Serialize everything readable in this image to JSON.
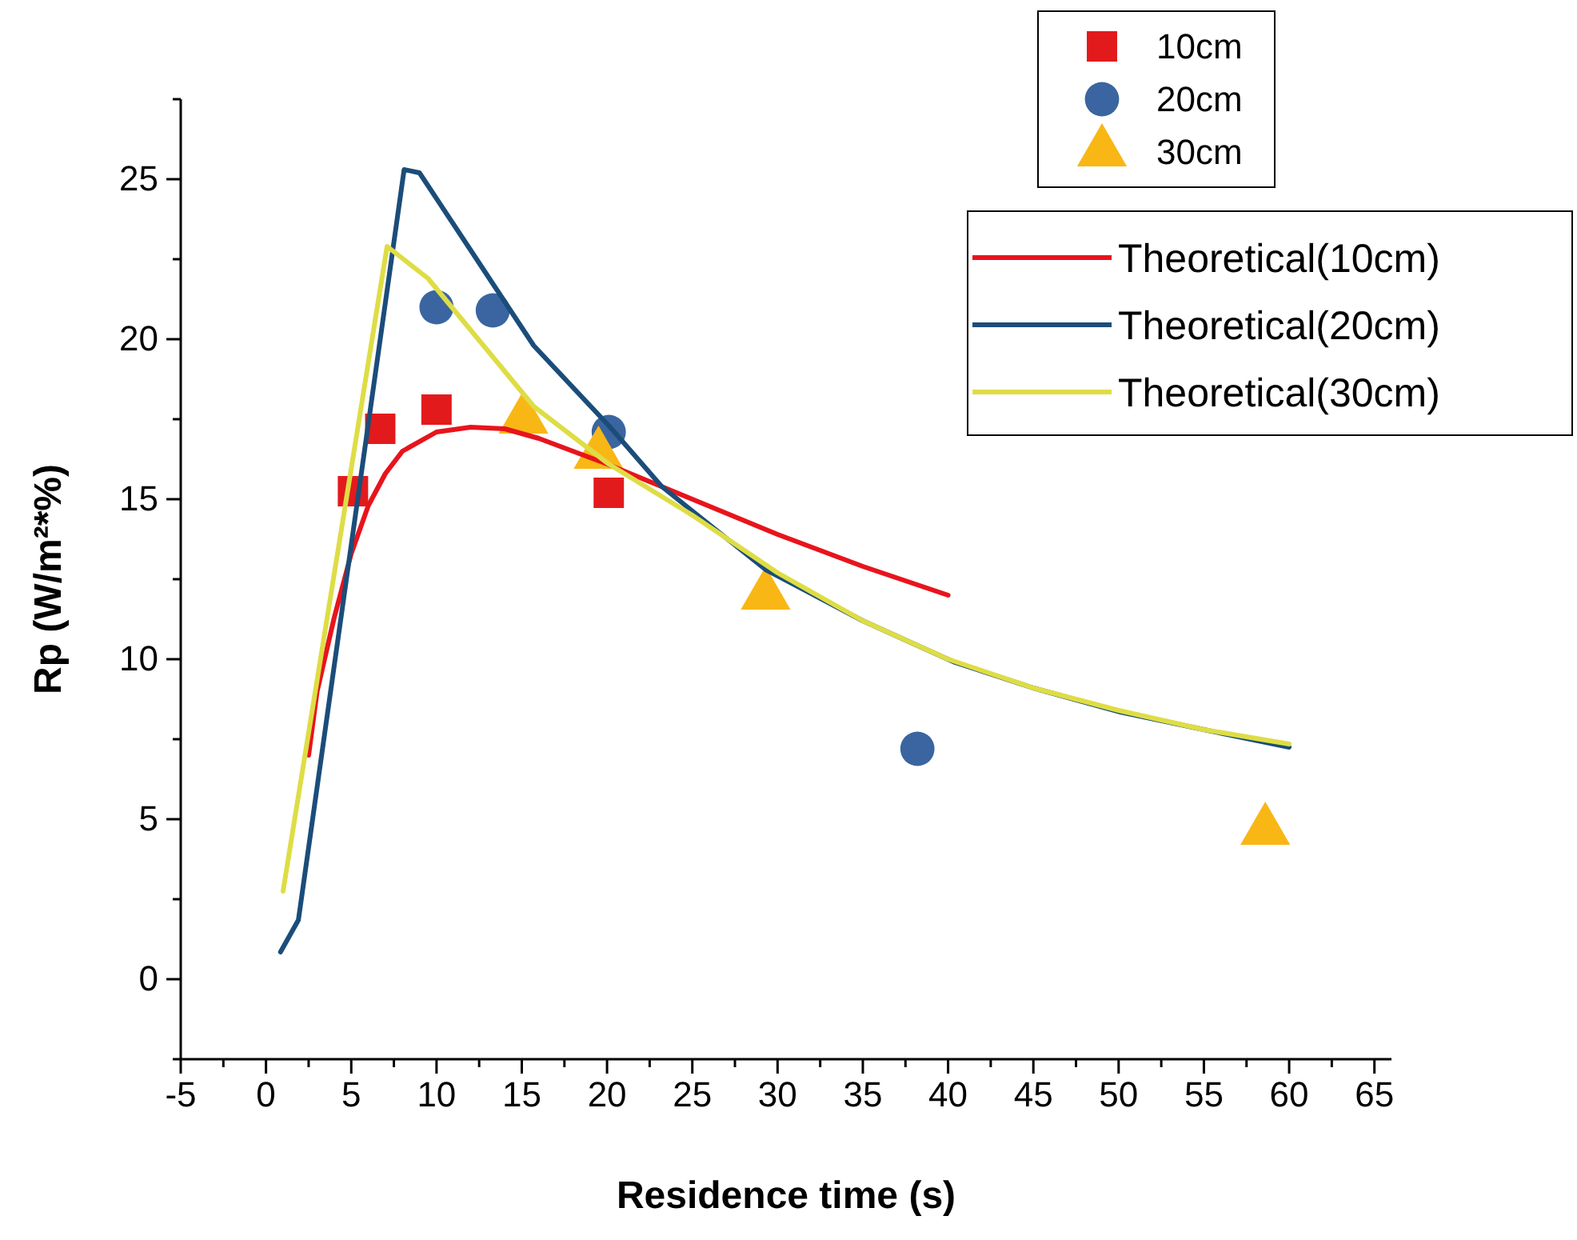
{
  "chart_data": {
    "type": "scatter",
    "xlabel": "Residence time (s)",
    "ylabel": "Rp (W/m²*%)",
    "xlim": [
      -5,
      66
    ],
    "ylim": [
      -2.5,
      27.5
    ],
    "xticks": [
      -5,
      {
        "value": -2.5,
        "label": null
      },
      0,
      {
        "value": 2.5,
        "label": null
      },
      5,
      {
        "value": 7.5,
        "label": null
      },
      10,
      {
        "value": 12.5,
        "label": null
      },
      15,
      {
        "value": 17.5,
        "label": null
      },
      20,
      {
        "value": 22.5,
        "label": null
      },
      25,
      {
        "value": 27.5,
        "label": null
      },
      30,
      {
        "value": 32.5,
        "label": null
      },
      35,
      {
        "value": 37.5,
        "label": null
      },
      40,
      {
        "value": 42.5,
        "label": null
      },
      45,
      {
        "value": 47.5,
        "label": null
      },
      50,
      {
        "value": 52.5,
        "label": null
      },
      55,
      {
        "value": 57.5,
        "label": null
      },
      60,
      {
        "value": 62.5,
        "label": null
      },
      65
    ],
    "yticks": [
      {
        "value": -2.5,
        "label": null
      },
      0,
      {
        "value": 2.5,
        "label": null
      },
      5,
      {
        "value": 7.5,
        "label": null
      },
      10,
      {
        "value": 12.5,
        "label": null
      },
      15,
      {
        "value": 17.5,
        "label": null
      },
      20,
      {
        "value": 22.5,
        "label": null
      },
      25,
      {
        "value": 27.5,
        "label": null
      }
    ],
    "grid": false,
    "legend": "top right",
    "series": [
      {
        "name": "10cm",
        "marker": "square",
        "color": "#e31a1c",
        "x": [
          5.1,
          6.7,
          10.0,
          20.1
        ],
        "values": [
          15.25,
          17.2,
          17.8,
          15.2
        ]
      },
      {
        "name": "20cm",
        "marker": "circle",
        "color": "#3a65a0",
        "x": [
          10.0,
          13.3,
          20.1,
          38.2
        ],
        "values": [
          21.0,
          20.9,
          17.1,
          7.2
        ]
      },
      {
        "name": "30cm",
        "marker": "triangle",
        "color": "#f9b715",
        "x": [
          15.1,
          19.5,
          29.3,
          58.6
        ],
        "values": [
          17.5,
          16.4,
          12.0,
          4.65
        ]
      },
      {
        "name": "Theoretical(10cm)",
        "type": "line",
        "marker": "none",
        "line_style": "solid",
        "color": "#e8141c",
        "x": [
          2.5,
          3,
          4,
          5,
          6,
          7,
          8,
          10,
          12,
          14,
          16,
          18,
          20,
          25,
          30,
          35,
          40
        ],
        "values": [
          7,
          9,
          11.3,
          13.3,
          14.8,
          15.8,
          16.5,
          17.1,
          17.25,
          17.2,
          16.9,
          16.5,
          16.1,
          15.0,
          13.9,
          12.9,
          12.0
        ]
      },
      {
        "name": "Theoretical(20cm)",
        "type": "line",
        "marker": "none",
        "line_style": "solid",
        "color": "#1b4d7a",
        "x": [
          0.85,
          1.9,
          8.1,
          9.0,
          12.6,
          15.7,
          20.1,
          23.2,
          29.3,
          35,
          40.4,
          45,
          50.1,
          55,
          60
        ],
        "values": [
          0.85,
          1.85,
          25.3,
          25.2,
          22.3,
          19.8,
          17.3,
          15.4,
          12.8,
          11.2,
          9.9,
          9.1,
          8.35,
          7.8,
          7.25
        ]
      },
      {
        "name": "Theoretical(30cm)",
        "type": "line",
        "marker": "none",
        "line_style": "solid",
        "color": "#dedd45",
        "x": [
          1.0,
          7.1,
          9.5,
          12.6,
          15.7,
          20.1,
          25,
          30,
          35,
          40,
          45,
          50,
          55,
          60
        ],
        "values": [
          2.75,
          22.9,
          21.9,
          19.9,
          17.9,
          16.1,
          14.5,
          12.7,
          11.2,
          10.0,
          9.1,
          8.4,
          7.8,
          7.35
        ]
      }
    ]
  }
}
